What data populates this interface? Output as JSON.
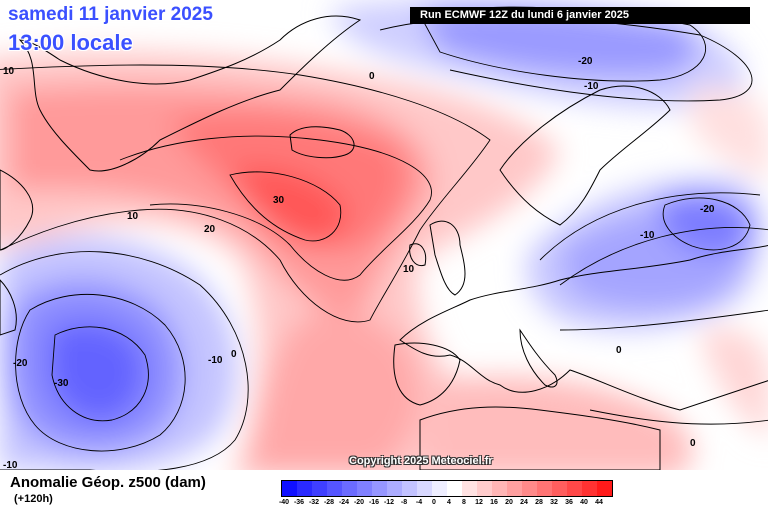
{
  "header": {
    "date_line": "samedi 11 janvier 2025",
    "time_line": "13:00 locale",
    "run_info": "Run ECMWF 12Z du lundi 6 janvier 2025"
  },
  "copyright": "Copyright 2025 Meteociel.fr",
  "legend": {
    "title": "Anomalie Géop. z500 (dam)",
    "subtitle": "(+120h)",
    "ticks": [
      "-40",
      "-36",
      "-32",
      "-28",
      "-24",
      "-20",
      "-16",
      "-12",
      "-8",
      "-4",
      "0",
      "4",
      "8",
      "12",
      "16",
      "20",
      "24",
      "28",
      "32",
      "36",
      "40",
      "44"
    ],
    "colors": [
      "#1010ff",
      "#2a2aff",
      "#3f3fff",
      "#5555ff",
      "#6b6bff",
      "#8080ff",
      "#9696ff",
      "#acacff",
      "#c2c2ff",
      "#d8d8ff",
      "#eeeeff",
      "#ffffff",
      "#ffe2e2",
      "#ffcccc",
      "#ffb6b6",
      "#ffa0a0",
      "#ff8a8a",
      "#ff7474",
      "#ff5e5e",
      "#ff4848",
      "#ff3232",
      "#ff1a1a"
    ]
  },
  "contour_labels": [
    {
      "text": "10"
    },
    {
      "text": "0"
    },
    {
      "text": "-20"
    },
    {
      "text": "-10"
    },
    {
      "text": "30"
    },
    {
      "text": "10"
    },
    {
      "text": "20"
    },
    {
      "text": "10"
    },
    {
      "text": "-20"
    },
    {
      "text": "-10"
    },
    {
      "text": "-20"
    },
    {
      "text": "-30"
    },
    {
      "text": "-10"
    },
    {
      "text": "0"
    },
    {
      "text": "-10"
    },
    {
      "text": "0"
    },
    {
      "text": "0"
    }
  ],
  "colors": {
    "title_blue": "#3b50ff",
    "land_lines": "#000000",
    "contour_lines": "#000000"
  }
}
